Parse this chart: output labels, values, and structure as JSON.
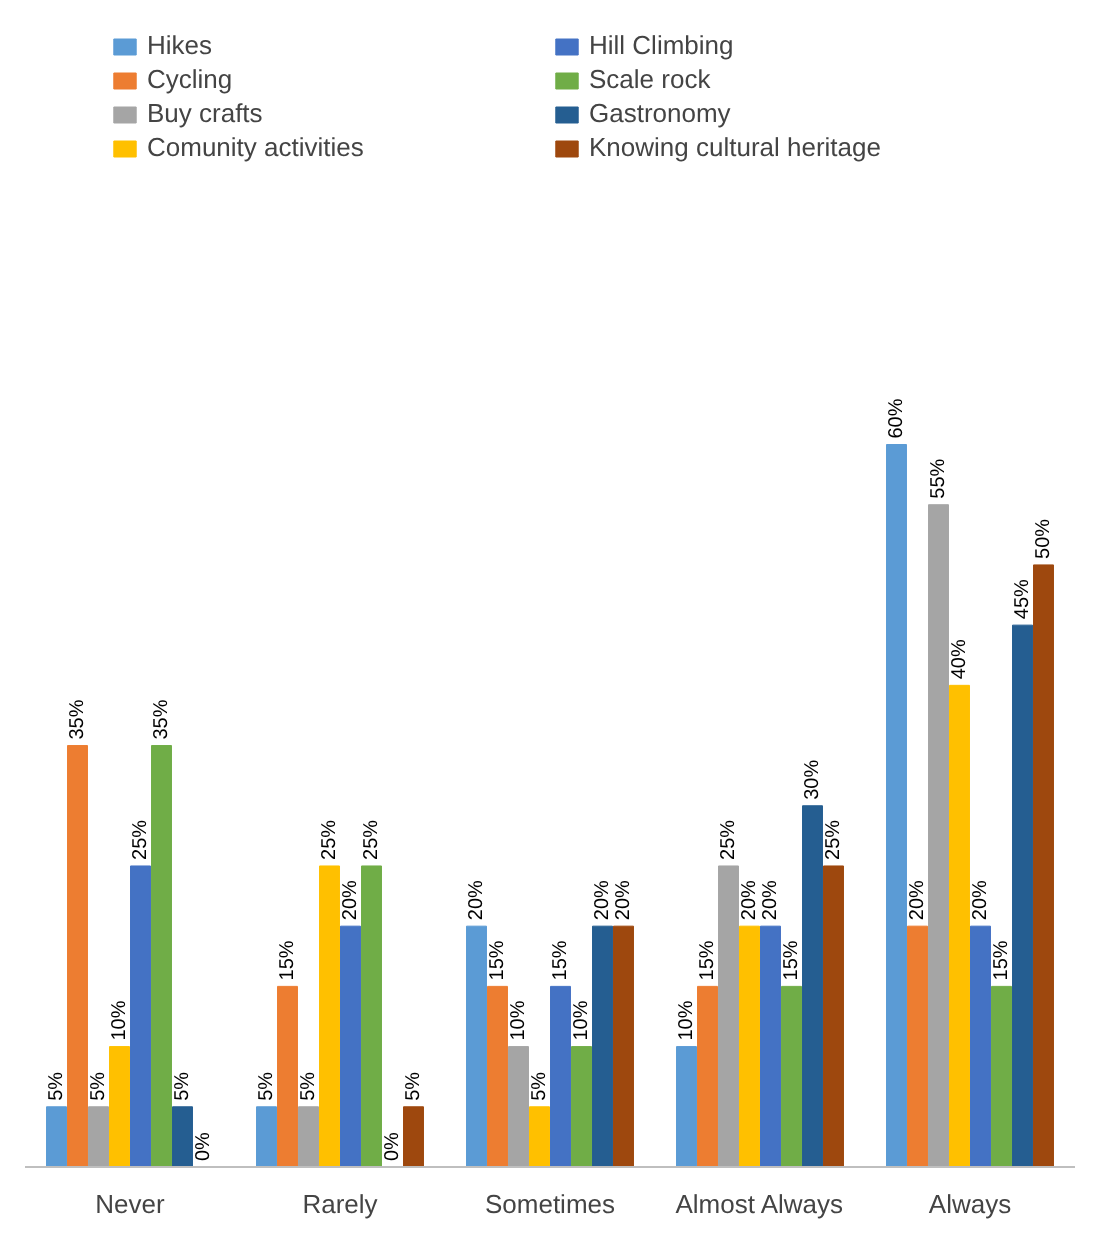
{
  "chart_data": {
    "type": "bar",
    "categories": [
      "Never",
      "Rarely",
      "Sometimes",
      "Almost Always",
      "Always"
    ],
    "series": [
      {
        "name": "Hikes",
        "color": "#5b9bd5",
        "values": [
          5,
          5,
          20,
          10,
          60
        ],
        "value_labels": [
          "5%",
          "5%",
          "20%",
          "10%",
          "60%"
        ]
      },
      {
        "name": "Cycling",
        "color": "#ed7d31",
        "values": [
          35,
          15,
          15,
          15,
          20
        ],
        "value_labels": [
          "35%",
          "15%",
          "15%",
          "15%",
          "20%"
        ]
      },
      {
        "name": "Buy crafts",
        "color": "#a5a5a5",
        "values": [
          5,
          5,
          10,
          25,
          55
        ],
        "value_labels": [
          "5%",
          "5%",
          "10%",
          "25%",
          "55%"
        ]
      },
      {
        "name": "Comunity activities",
        "color": "#ffc000",
        "values": [
          10,
          25,
          5,
          20,
          40
        ],
        "value_labels": [
          "10%",
          "25%",
          "5%",
          "20%",
          "40%"
        ]
      },
      {
        "name": "Hill Climbing",
        "color": "#4472c4",
        "values": [
          25,
          20,
          15,
          20,
          20
        ],
        "value_labels": [
          "25%",
          "20%",
          "15%",
          "20%",
          "20%"
        ]
      },
      {
        "name": "Scale rock",
        "color": "#70ad47",
        "values": [
          35,
          25,
          10,
          15,
          15
        ],
        "value_labels": [
          "35%",
          "25%",
          "10%",
          "15%",
          "15%"
        ]
      },
      {
        "name": "Gastronomy",
        "color": "#255e91",
        "values": [
          5,
          0,
          20,
          30,
          45
        ],
        "value_labels": [
          "5%",
          "0%",
          "20%",
          "30%",
          "45%"
        ]
      },
      {
        "name": "Knowing cultural heritage",
        "color": "#9e480e",
        "values": [
          0,
          5,
          20,
          25,
          50
        ],
        "value_labels": [
          "0%",
          "5%",
          "20%",
          "25%",
          "50%"
        ]
      }
    ],
    "legend": "top"
  }
}
